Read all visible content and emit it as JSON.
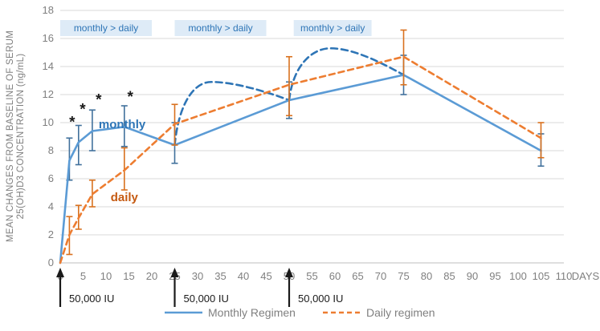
{
  "chart_data": {
    "type": "line",
    "title": "",
    "xlabel": "DAYS",
    "ylabel_line1": "MEAN CHANGES FROM BASELINE OF SERUM",
    "ylabel_line2": "25(OH)D3 CONCENTRATION (ng/mL)",
    "x_ticks": [
      0,
      5,
      10,
      15,
      20,
      25,
      30,
      35,
      40,
      45,
      50,
      55,
      60,
      65,
      70,
      75,
      80,
      85,
      90,
      95,
      100,
      105,
      110
    ],
    "x_axis_suffix": "DAYS",
    "xlim": [
      0,
      110
    ],
    "ylim": [
      0,
      18
    ],
    "y_tick_step": 2,
    "grid": true,
    "legend_position": "bottom",
    "series": [
      {
        "name": "Monthly Regimen",
        "style": "solid",
        "points": [
          {
            "day": 0,
            "value": 0
          },
          {
            "day": 2,
            "value": 7.3,
            "lo": 5.9,
            "hi": 8.9
          },
          {
            "day": 4,
            "value": 8.6,
            "lo": 7.0,
            "hi": 9.8
          },
          {
            "day": 7,
            "value": 9.4,
            "lo": 8.0,
            "hi": 10.9
          },
          {
            "day": 14,
            "value": 9.7,
            "lo": 8.3,
            "hi": 11.2
          },
          {
            "day": 25,
            "value": 8.4,
            "lo": 7.1,
            "hi": 10.0
          },
          {
            "day": 50,
            "value": 11.6,
            "lo": 10.3,
            "hi": 12.9
          },
          {
            "day": 75,
            "value": 13.4,
            "lo": 12.0,
            "hi": 14.8
          },
          {
            "day": 105,
            "value": 8.0,
            "lo": 6.9,
            "hi": 9.2
          }
        ]
      },
      {
        "name": "Daily regimen",
        "style": "dashed",
        "points": [
          {
            "day": 0,
            "value": 0
          },
          {
            "day": 2,
            "value": 2.0,
            "lo": 0.6,
            "hi": 3.3
          },
          {
            "day": 4,
            "value": 3.2,
            "lo": 2.4,
            "hi": 4.1
          },
          {
            "day": 7,
            "value": 4.9,
            "lo": 4.0,
            "hi": 5.9
          },
          {
            "day": 14,
            "value": 6.6,
            "lo": 5.2,
            "hi": 8.2
          },
          {
            "day": 25,
            "value": 9.9,
            "lo": 8.4,
            "hi": 11.3
          },
          {
            "day": 50,
            "value": 12.7,
            "lo": 10.5,
            "hi": 14.7
          },
          {
            "day": 75,
            "value": 14.7,
            "lo": 12.7,
            "hi": 16.6
          },
          {
            "day": 105,
            "value": 8.9,
            "lo": 7.5,
            "hi": 10.0
          }
        ]
      }
    ],
    "annotations": {
      "bands": [
        {
          "label": "monthly > daily",
          "day_start": 0,
          "day_end": 20
        },
        {
          "label": "monthly > daily",
          "day_start": 25,
          "day_end": 45
        },
        {
          "label": "monthly > daily",
          "day_start": 51,
          "day_end": 68
        }
      ],
      "series_labels": [
        {
          "text": "monthly",
          "day": 8.4,
          "value": 9.9,
          "color_key": "monthly_label"
        },
        {
          "text": "daily",
          "day": 11.0,
          "value": 4.7,
          "color_key": "daily_label"
        }
      ],
      "asterisks": [
        {
          "day": 2.6,
          "value": 10.1
        },
        {
          "day": 4.9,
          "value": 11.0
        },
        {
          "day": 8.4,
          "value": 11.7
        },
        {
          "day": 15.3,
          "value": 11.9
        }
      ],
      "projection_arcs": [
        {
          "from_day": 25,
          "from_value": 8.4,
          "peak_day": 33,
          "peak_value": 12.9,
          "to_day": 50,
          "to_value": 11.6
        },
        {
          "from_day": 50,
          "from_value": 11.6,
          "peak_day": 59,
          "peak_value": 15.3,
          "to_day": 75,
          "to_value": 13.4
        }
      ],
      "dose_arrows": [
        {
          "day": 0,
          "label": "50,000 IU"
        },
        {
          "day": 25,
          "label": "50,000 IU"
        },
        {
          "day": 50,
          "label": "50,000 IU"
        }
      ]
    },
    "legend": [
      {
        "label": "Monthly Regimen",
        "style": "solid"
      },
      {
        "label": "Daily regimen",
        "style": "dashed"
      }
    ]
  },
  "colors": {
    "monthly_line": "#5b9bd5",
    "monthly_error": "#41719c",
    "daily_line": "#ed7d31",
    "daily_error": "#d9711e",
    "projection_arc": "#2e75b6",
    "band_fill": "#deebf7",
    "band_text": "#2e75b6",
    "monthly_label": "#2e75b6",
    "daily_label": "#c55a11",
    "gridline": "#d9d9d9",
    "axis_line": "#bfbfbf",
    "axis_text": "#7f7f7f",
    "black": "#1a1a1a",
    "legend_text": "#808080"
  }
}
